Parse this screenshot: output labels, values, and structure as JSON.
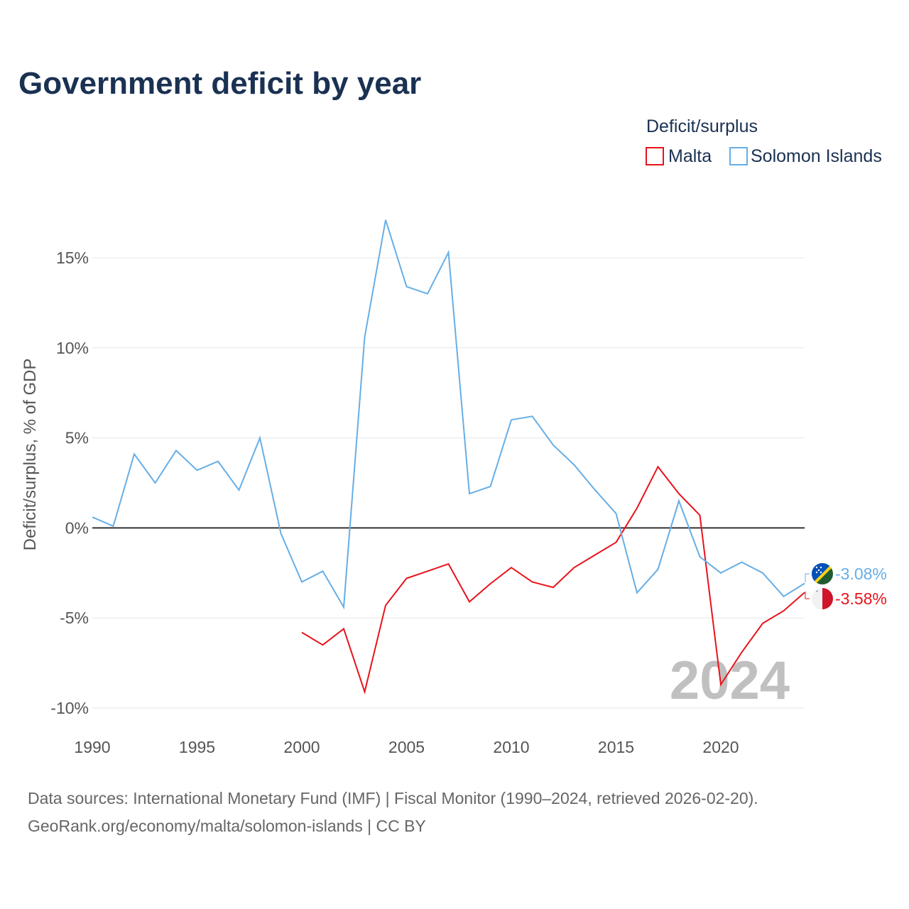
{
  "title": "Government deficit by year",
  "legend": {
    "title": "Deficit/surplus",
    "items": [
      {
        "label": "Malta",
        "color": "#e8131b"
      },
      {
        "label": "Solomon Islands",
        "color": "#66aee6"
      }
    ]
  },
  "year_watermark": "2024",
  "sources": {
    "line1": "Data sources: International Monetary Fund (IMF) | Fiscal Monitor (1990–2024, retrieved 2026-02-20).",
    "line2": "GeoRank.org/economy/malta/solomon-islands | CC BY"
  },
  "end_labels": {
    "solomon": "-3.08%",
    "malta": "-3.58%"
  },
  "chart_data": {
    "type": "line",
    "title": "Government deficit by year",
    "xlabel": "",
    "ylabel": "Deficit/surplus, % of GDP",
    "xlim": [
      1990,
      2024
    ],
    "ylim": [
      -10,
      18
    ],
    "x_ticks": [
      1990,
      1995,
      2000,
      2005,
      2010,
      2015,
      2020
    ],
    "x_tick_labels": [
      "1990",
      "1995",
      "2000",
      "2005",
      "2010",
      "2015",
      "2020"
    ],
    "y_ticks": [
      -10,
      -5,
      0,
      5,
      10,
      15
    ],
    "y_tick_labels": [
      "-10%",
      "-5%",
      "0%",
      "5%",
      "10%",
      "15%"
    ],
    "series": [
      {
        "name": "Malta",
        "color": "#e8131b",
        "x": [
          2000,
          2001,
          2002,
          2003,
          2004,
          2005,
          2006,
          2007,
          2008,
          2009,
          2010,
          2011,
          2012,
          2013,
          2014,
          2015,
          2016,
          2017,
          2018,
          2019,
          2020,
          2021,
          2022,
          2023,
          2024
        ],
        "values": [
          -5.8,
          -6.5,
          -5.6,
          -9.1,
          -4.3,
          -2.8,
          -2.4,
          -2.0,
          -4.1,
          -3.1,
          -2.2,
          -3.0,
          -3.3,
          -2.2,
          -1.5,
          -0.8,
          1.1,
          3.4,
          1.9,
          0.7,
          -8.7,
          -6.9,
          -5.3,
          -4.6,
          -3.58
        ]
      },
      {
        "name": "Solomon Islands",
        "color": "#66aee6",
        "x": [
          1990,
          1991,
          1992,
          1993,
          1994,
          1995,
          1996,
          1997,
          1998,
          1999,
          2000,
          2001,
          2002,
          2003,
          2004,
          2005,
          2006,
          2007,
          2008,
          2009,
          2010,
          2011,
          2012,
          2013,
          2014,
          2015,
          2016,
          2017,
          2018,
          2019,
          2020,
          2021,
          2022,
          2023,
          2024
        ],
        "values": [
          0.6,
          0.1,
          4.1,
          2.5,
          4.3,
          3.2,
          3.7,
          2.1,
          5.0,
          -0.3,
          -3.0,
          -2.4,
          -4.4,
          10.6,
          17.1,
          13.4,
          13.0,
          15.3,
          1.9,
          2.3,
          6.0,
          6.2,
          4.6,
          3.5,
          2.1,
          0.8,
          -3.6,
          -2.3,
          1.5,
          -1.6,
          -2.5,
          -1.9,
          -2.5,
          -3.8,
          -3.08
        ]
      }
    ]
  }
}
